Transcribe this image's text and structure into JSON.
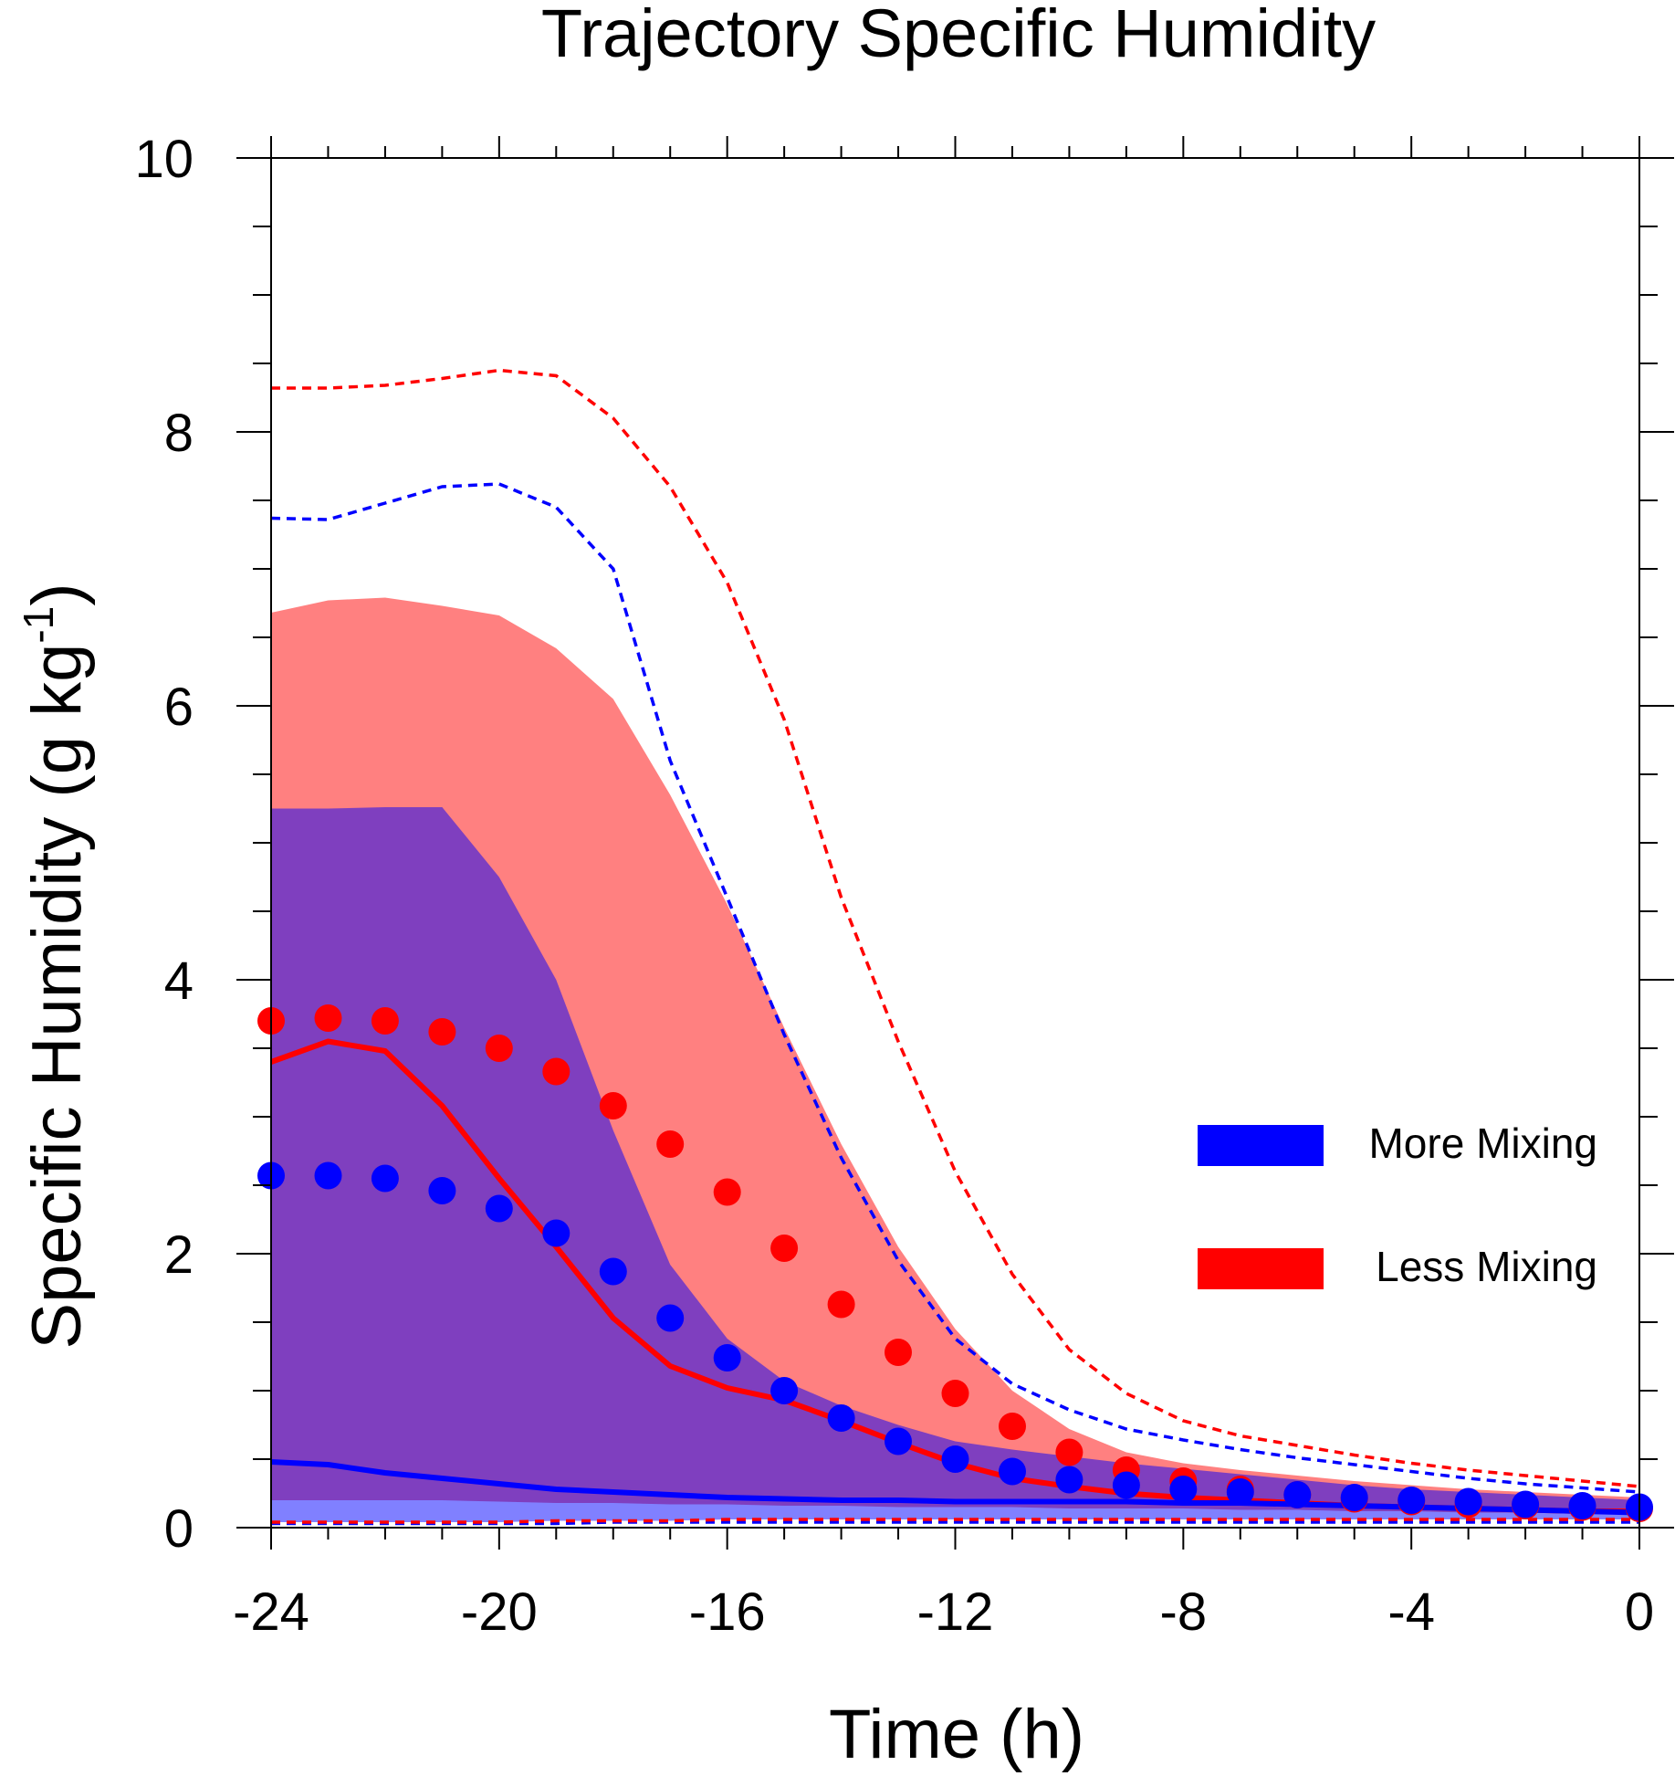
{
  "chart_data": {
    "type": "line",
    "title": "Trajectory Specific Humidity",
    "xlabel": "Time (h)",
    "ylabel": "Specific Humidity (g kg",
    "ylabel_sup": "-1",
    "ylabel_end": ")",
    "xlim": [
      -24,
      0
    ],
    "ylim": [
      0,
      10
    ],
    "x_ticks": [
      -24,
      -20,
      -16,
      -12,
      -8,
      -4,
      0
    ],
    "x_tick_labels": [
      "-24",
      "-20",
      "-16",
      "-12",
      "-8",
      "-4",
      "0"
    ],
    "y_ticks": [
      0,
      2,
      4,
      6,
      8,
      10
    ],
    "y_tick_labels": [
      "0",
      "2",
      "4",
      "6",
      "8",
      "10"
    ],
    "grid": false,
    "legend_position": "right",
    "legend": [
      {
        "label": "More Mixing",
        "color": "#0000ff"
      },
      {
        "label": "Less Mixing",
        "color": "#ff0000"
      }
    ],
    "x": [
      -24,
      -23,
      -22,
      -21,
      -20,
      -19,
      -18,
      -17,
      -16,
      -15,
      -14,
      -13,
      -12,
      -11,
      -10,
      -9,
      -8,
      -7,
      -6,
      -5,
      -4,
      -3,
      -2,
      -1,
      0
    ],
    "bands": [
      {
        "name": "Less Mixing range",
        "color": "#ff8080",
        "upper": [
          6.68,
          6.77,
          6.79,
          6.73,
          6.66,
          6.42,
          6.05,
          5.35,
          4.55,
          3.65,
          2.8,
          2.05,
          1.45,
          1.0,
          0.72,
          0.55,
          0.47,
          0.42,
          0.38,
          0.34,
          0.31,
          0.28,
          0.26,
          0.24,
          0.22
        ],
        "lower": [
          0.17,
          0.17,
          0.17,
          0.16,
          0.16,
          0.15,
          0.15,
          0.14,
          0.14,
          0.13,
          0.13,
          0.12,
          0.12,
          0.11,
          0.11,
          0.1,
          0.1,
          0.1,
          0.09,
          0.09,
          0.09,
          0.08,
          0.08,
          0.08,
          0.08
        ]
      },
      {
        "name": "More Mixing range",
        "color": "#7f3fbf",
        "upper": [
          5.25,
          5.25,
          5.26,
          5.26,
          4.75,
          4.0,
          2.9,
          1.92,
          1.38,
          1.07,
          0.89,
          0.75,
          0.63,
          0.57,
          0.52,
          0.47,
          0.43,
          0.39,
          0.35,
          0.31,
          0.28,
          0.26,
          0.24,
          0.22,
          0.2
        ],
        "lower": [
          0.2,
          0.2,
          0.2,
          0.19,
          0.18,
          0.18,
          0.17,
          0.16,
          0.16,
          0.15,
          0.15,
          0.14,
          0.14,
          0.14,
          0.13,
          0.13,
          0.12,
          0.12,
          0.12,
          0.11,
          0.11,
          0.1,
          0.1,
          0.1,
          0.1
        ]
      }
    ],
    "series": [
      {
        "role": "less-mixing-median",
        "style": "solid",
        "color": "#ff0000",
        "values": [
          3.4,
          3.55,
          3.48,
          3.08,
          2.55,
          2.05,
          1.53,
          1.18,
          1.02,
          0.93,
          0.78,
          0.62,
          0.47,
          0.36,
          0.3,
          0.25,
          0.22,
          0.2,
          0.18,
          0.16,
          0.15,
          0.14,
          0.13,
          0.12,
          0.12
        ]
      },
      {
        "role": "more-mixing-median",
        "style": "solid",
        "color": "#0000ff",
        "values": [
          0.48,
          0.46,
          0.4,
          0.36,
          0.32,
          0.28,
          0.26,
          0.24,
          0.22,
          0.21,
          0.2,
          0.2,
          0.19,
          0.19,
          0.19,
          0.19,
          0.18,
          0.18,
          0.17,
          0.16,
          0.15,
          0.14,
          0.13,
          0.12,
          0.11
        ]
      },
      {
        "role": "less-mixing-mean",
        "style": "dots",
        "color": "#ff0000",
        "values": [
          3.7,
          3.72,
          3.7,
          3.62,
          3.5,
          3.33,
          3.08,
          2.8,
          2.45,
          2.04,
          1.63,
          1.28,
          0.98,
          0.74,
          0.55,
          0.42,
          0.34,
          0.28,
          0.24,
          0.21,
          0.19,
          0.17,
          0.16,
          0.15,
          0.14
        ]
      },
      {
        "role": "more-mixing-mean",
        "style": "dots",
        "color": "#0000ff",
        "values": [
          2.57,
          2.57,
          2.55,
          2.46,
          2.33,
          2.15,
          1.87,
          1.53,
          1.24,
          1.0,
          0.8,
          0.63,
          0.5,
          0.41,
          0.35,
          0.31,
          0.28,
          0.26,
          0.24,
          0.22,
          0.2,
          0.19,
          0.17,
          0.16,
          0.15
        ]
      },
      {
        "role": "less-mixing-upper-dashed",
        "style": "dashed",
        "color": "#ff0000",
        "values": [
          8.32,
          8.32,
          8.34,
          8.39,
          8.45,
          8.41,
          8.1,
          7.6,
          6.9,
          5.9,
          4.6,
          3.55,
          2.6,
          1.85,
          1.3,
          0.98,
          0.78,
          0.67,
          0.6,
          0.53,
          0.47,
          0.42,
          0.38,
          0.34,
          0.3
        ]
      },
      {
        "role": "more-mixing-upper-dashed",
        "style": "dashed",
        "color": "#0000ff",
        "values": [
          7.37,
          7.36,
          7.48,
          7.6,
          7.62,
          7.45,
          7.0,
          5.6,
          4.6,
          3.6,
          2.7,
          1.95,
          1.38,
          1.05,
          0.86,
          0.72,
          0.64,
          0.57,
          0.51,
          0.46,
          0.41,
          0.36,
          0.32,
          0.29,
          0.26
        ]
      },
      {
        "role": "more-mixing-lower-dashed",
        "style": "dashed",
        "color": "#0000ff",
        "values": [
          0.03,
          0.03,
          0.03,
          0.03,
          0.03,
          0.03,
          0.04,
          0.04,
          0.04,
          0.04,
          0.04,
          0.04,
          0.04,
          0.04,
          0.04,
          0.04,
          0.04,
          0.04,
          0.04,
          0.04,
          0.04,
          0.04,
          0.04,
          0.04,
          0.04
        ]
      },
      {
        "role": "less-mixing-lower-dashed",
        "style": "dashed",
        "color": "#ff0000",
        "values": [
          0.04,
          0.04,
          0.04,
          0.04,
          0.04,
          0.05,
          0.05,
          0.05,
          0.06,
          0.06,
          0.06,
          0.06,
          0.06,
          0.06,
          0.06,
          0.06,
          0.06,
          0.06,
          0.06,
          0.06,
          0.06,
          0.06,
          0.06,
          0.06,
          0.06
        ]
      }
    ],
    "bottom_band": {
      "color": "#8080ff",
      "upper": [
        0.2,
        0.2,
        0.2,
        0.2,
        0.19,
        0.18,
        0.18,
        0.17,
        0.17,
        0.16,
        0.16,
        0.15,
        0.15,
        0.15,
        0.14,
        0.14,
        0.14,
        0.13,
        0.13,
        0.12,
        0.12,
        0.11,
        0.11,
        0.11,
        0.1
      ],
      "lower": [
        0.04,
        0.04,
        0.04,
        0.04,
        0.04,
        0.05,
        0.05,
        0.05,
        0.06,
        0.06,
        0.06,
        0.06,
        0.06,
        0.06,
        0.06,
        0.06,
        0.06,
        0.06,
        0.06,
        0.06,
        0.06,
        0.06,
        0.06,
        0.06,
        0.06
      ]
    }
  }
}
